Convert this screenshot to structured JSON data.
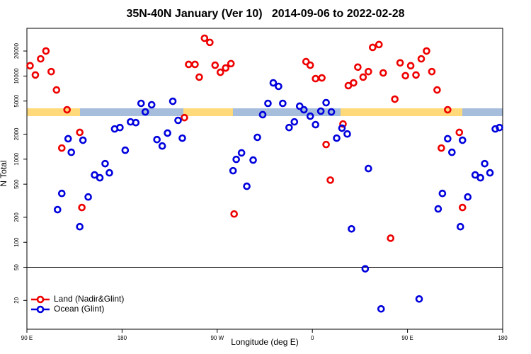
{
  "chart_data": {
    "type": "scatter",
    "title": "35N-40N January (Ver 10)   2014-09-06 to 2022-02-28",
    "x_label": "Longitude (deg E)",
    "y_label": "N Total",
    "xlim": [
      90,
      540
    ],
    "xticks": [
      {
        "value": 90,
        "label": "90 E"
      },
      180,
      {
        "value": 270,
        "label": "90 W"
      },
      {
        "value": 360,
        "label": "0"
      },
      {
        "value": 450,
        "label": "90 E"
      },
      {
        "value": 540,
        "label": "180"
      }
    ],
    "ylim": [
      9,
      37500
    ],
    "log_y": true,
    "yticks": [
      20,
      50,
      100,
      200,
      500,
      1000,
      2000,
      5000,
      10000,
      20000
    ],
    "reference_line": 50,
    "legend": "bottom-left",
    "series": [
      {
        "name": "Land (Nadir&Glint)",
        "color": "#ee0000",
        "x": [
          93,
          98,
          103,
          108,
          113,
          118,
          123,
          128,
          140,
          142,
          239,
          243,
          249,
          253,
          258,
          263,
          268,
          273,
          278,
          283,
          286,
          354,
          358,
          363,
          369,
          373,
          377,
          389,
          394,
          399,
          403,
          408,
          413,
          417,
          423,
          427,
          434,
          438,
          443,
          448,
          453,
          458,
          463,
          468,
          473,
          478,
          482,
          488,
          499,
          502
        ],
        "values": [
          13300,
          10300,
          16100,
          20000,
          11300,
          6800,
          1360,
          3930,
          2100,
          262,
          3160,
          13800,
          13800,
          9700,
          28500,
          25400,
          13500,
          11100,
          12500,
          14100,
          219,
          14900,
          13500,
          9300,
          9500,
          1500,
          560,
          2650,
          7660,
          8280,
          12800,
          9700,
          11300,
          22100,
          23900,
          10900,
          112,
          5270,
          14400,
          10100,
          13300,
          10300,
          16100,
          20000,
          11300,
          6800,
          1360,
          3930,
          2100,
          262
        ]
      },
      {
        "name": "Ocean (Glint)",
        "color": "#0000dd",
        "x": [
          119,
          123,
          129,
          132,
          140,
          143,
          148,
          154,
          159,
          164,
          168,
          173,
          178,
          183,
          188,
          193,
          198,
          202,
          208,
          213,
          218,
          223,
          228,
          233,
          237,
          285,
          288,
          293,
          298,
          304,
          308,
          313,
          318,
          323,
          328,
          332,
          338,
          343,
          348,
          352,
          358,
          363,
          368,
          373,
          378,
          383,
          388,
          393,
          397,
          410,
          413,
          425,
          461,
          479,
          483,
          488,
          492,
          500,
          502,
          507,
          514,
          519,
          523,
          528,
          533,
          537
        ],
        "values": [
          247,
          387,
          1760,
          1210,
          154,
          1690,
          351,
          646,
          597,
          883,
          685,
          2310,
          2400,
          1280,
          2810,
          2750,
          4690,
          3700,
          4510,
          1720,
          1440,
          2060,
          4970,
          2930,
          1790,
          726,
          994,
          1190,
          472,
          975,
          1830,
          3430,
          4690,
          8280,
          7510,
          4690,
          2400,
          2810,
          4340,
          3930,
          3290,
          2600,
          3780,
          4780,
          3700,
          1790,
          2360,
          2010,
          145,
          48,
          771,
          15.8,
          20.8,
          252,
          387,
          1760,
          1210,
          154,
          1690,
          351,
          646,
          597,
          883,
          685,
          2310,
          2400
        ]
      }
    ]
  }
}
